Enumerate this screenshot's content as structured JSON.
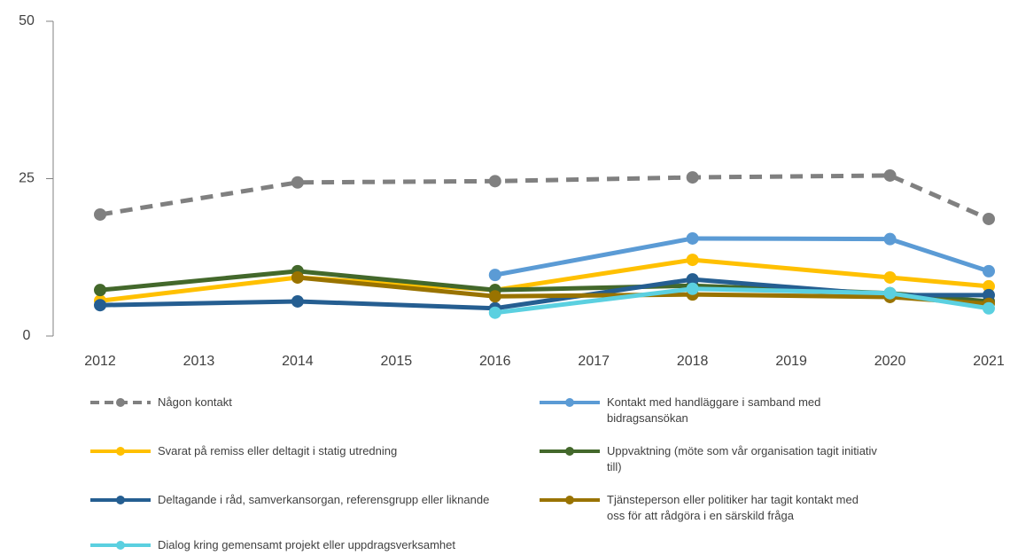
{
  "chart_data": {
    "type": "line",
    "x": [
      2012,
      2014,
      2016,
      2018,
      2020,
      2021
    ],
    "xlim": [
      2012,
      2021
    ],
    "xticks": [
      2012,
      2013,
      2014,
      2015,
      2016,
      2017,
      2018,
      2019,
      2020,
      2021
    ],
    "ylim": [
      0,
      50
    ],
    "yticks": [
      0,
      25,
      50
    ],
    "series": [
      {
        "name": "Någon kontakt",
        "color": "#808080",
        "dashed": true,
        "values": [
          19.3,
          24.4,
          24.6,
          25.2,
          25.5,
          18.6
        ]
      },
      {
        "name": "Kontakt med handläggare i samband med bidragsansökan",
        "color": "#5b9bd5",
        "values": [
          null,
          null,
          9.7,
          15.5,
          15.4,
          10.3
        ]
      },
      {
        "name": "Svarat på remiss eller deltagit i statig utredning",
        "color": "#ffc000",
        "values": [
          5.6,
          9.3,
          7.3,
          12.1,
          9.3,
          7.9
        ]
      },
      {
        "name": "Uppvaktning (möte som vår organisation tagit initiativ till)",
        "color": "#43682b",
        "values": [
          7.3,
          10.3,
          7.3,
          8.0,
          6.8,
          5.5
        ]
      },
      {
        "name": "Deltagande i råd, samverkansorgan, referensgrupp eller liknande",
        "color": "#255e91",
        "values": [
          4.9,
          5.5,
          4.4,
          9.0,
          6.5,
          6.5
        ]
      },
      {
        "name": "Tjänsteperson eller politiker har tagit kontakt med oss för att rådgöra i en särskild fråga",
        "color": "#997300",
        "values": [
          null,
          9.3,
          6.3,
          6.6,
          6.2,
          5.1
        ]
      },
      {
        "name": "Dialog kring gemensamt projekt eller uppdragsverksamhet",
        "color": "#5bd0e0",
        "values": [
          null,
          null,
          3.7,
          7.5,
          6.8,
          4.4
        ]
      }
    ]
  }
}
